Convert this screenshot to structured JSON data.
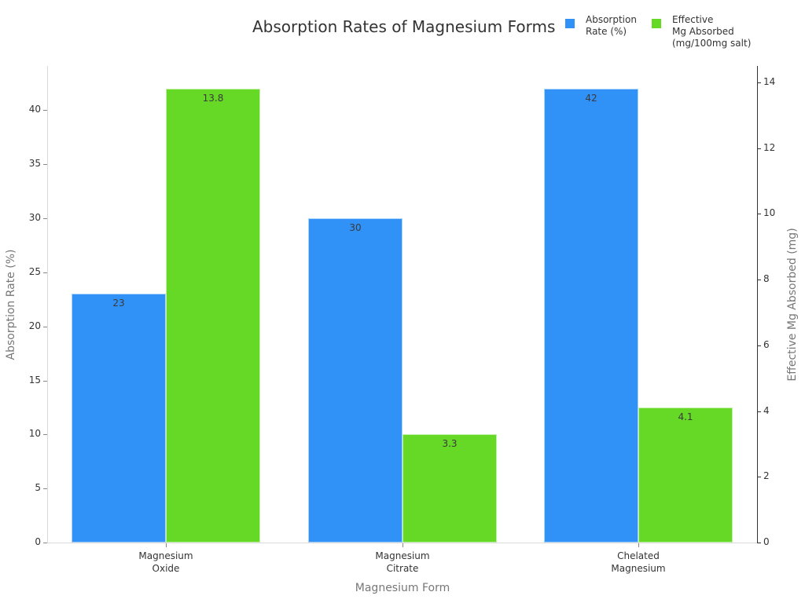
{
  "chart_data": {
    "type": "bar",
    "title": "Absorption Rates of Magnesium Forms",
    "xlabel": "Magnesium Form",
    "ylabel": "Absorption Rate (%)",
    "y2label": "Effective Mg Absorbed (mg)",
    "categories": [
      "Magnesium\nOxide",
      "Magnesium\nCitrate",
      "Chelated\nMagnesium"
    ],
    "series": [
      {
        "name": "Absorption\nRate (%)",
        "axis": "left",
        "color": "#3091f7",
        "values": [
          23,
          30,
          42
        ],
        "labels": [
          "23",
          "30",
          "42"
        ]
      },
      {
        "name": "Effective\nMg Absorbed\n(mg/100mg salt)",
        "axis": "right",
        "color": "#66d926",
        "values": [
          13.8,
          3.3,
          4.1
        ],
        "labels": [
          "13.8",
          "3.3",
          "4.1"
        ]
      }
    ],
    "ylim": [
      0,
      44.1
    ],
    "y2lim": [
      0,
      14.5
    ],
    "yticks": [
      0,
      5,
      10,
      15,
      20,
      25,
      30,
      35,
      40
    ],
    "y2ticks": [
      0,
      2,
      4,
      6,
      8,
      10,
      12,
      14
    ],
    "grid": false,
    "legend_position": "top-right"
  }
}
